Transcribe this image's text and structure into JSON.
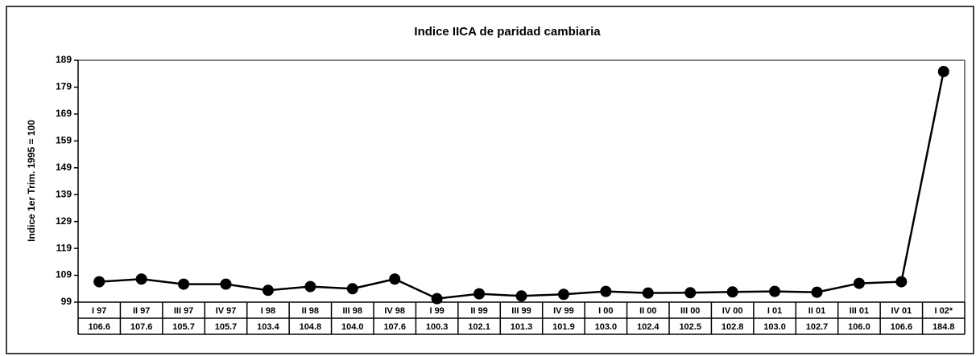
{
  "chart_data": {
    "type": "line",
    "title": "Indice IICA de paridad cambiaria",
    "y_label": "Indice 1er Trim. 1995 = 100",
    "categories": [
      "I 97",
      "II 97",
      "III 97",
      "IV 97",
      "I 98",
      "II 98",
      "III 98",
      "IV 98",
      "I 99",
      "II 99",
      "III 99",
      "IV 99",
      "I 00",
      "II 00",
      "III 00",
      "IV 00",
      "I 01",
      "II 01",
      "III 01",
      "IV 01",
      "I 02*"
    ],
    "series": [
      {
        "name": "Indice IICA",
        "color": "#000000",
        "values": [
          106.6,
          107.6,
          105.7,
          105.7,
          103.4,
          104.8,
          104.0,
          107.6,
          100.3,
          102.1,
          101.3,
          101.9,
          103.0,
          102.4,
          102.5,
          102.8,
          103.0,
          102.7,
          106.0,
          106.6,
          184.8
        ],
        "value_labels": [
          "106.6",
          "107.6",
          "105.7",
          "105.7",
          "103.4",
          "104.8",
          "104.0",
          "107.6",
          "100.3",
          "102.1",
          "101.3",
          "101.9",
          "103.0",
          "102.4",
          "102.5",
          "102.8",
          "103.0",
          "102.7",
          "106.0",
          "106.6",
          "184.8"
        ]
      }
    ],
    "ylim": [
      99,
      189
    ],
    "yticks": [
      99,
      109,
      119,
      129,
      139,
      149,
      159,
      169,
      179,
      189
    ]
  }
}
